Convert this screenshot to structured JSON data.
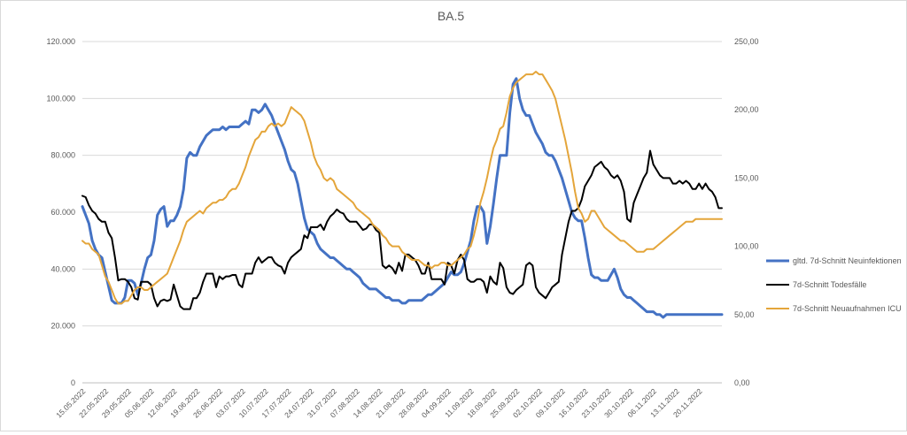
{
  "chart_data": {
    "type": "line",
    "title": "BA.5",
    "x_tick_labels": [
      "15.05.2022",
      "22.05.2022",
      "29.05.2022",
      "05.06.2022",
      "12.06.2022",
      "19.06.2022",
      "26.06.2022",
      "03.07.2022",
      "10.07.2022",
      "17.07.2022",
      "24.07.2022",
      "31.07.2022",
      "07.08.2022",
      "14.08.2022",
      "21.08.2022",
      "28.08.2022",
      "04.09.2022",
      "11.09.2022",
      "18.09.2022",
      "25.09.2022",
      "02.10.2022",
      "09.10.2022",
      "16.10.2022",
      "23.10.2022",
      "30.10.2022",
      "06.11.2022",
      "13.11.2022",
      "20.11.2022"
    ],
    "y_left": {
      "range": [
        0,
        120000
      ],
      "tick_labels": [
        "0",
        "20.000",
        "40.000",
        "60.000",
        "80.000",
        "100.000",
        "120.000"
      ]
    },
    "y_right": {
      "range": [
        0,
        250
      ],
      "tick_labels": [
        "0,00",
        "50,00",
        "100,00",
        "150,00",
        "200,00",
        "250,00"
      ]
    },
    "grid": "horizontal",
    "legend_position": "right",
    "series": [
      {
        "name": "gltd. 7d-Schnitt Neuinfektionen",
        "axis": "left",
        "color": "#4472c4",
        "x": [
          0,
          1,
          2,
          3,
          4,
          5,
          6,
          7,
          8,
          9,
          10,
          11,
          12,
          13,
          14,
          15,
          16,
          17,
          18,
          19,
          20,
          21,
          22,
          23,
          24,
          25,
          26,
          27,
          28,
          29,
          30,
          31,
          32,
          33,
          34,
          35,
          36,
          37,
          38,
          39,
          40,
          41,
          42,
          43,
          44,
          45,
          46,
          47,
          48,
          49,
          50,
          51,
          52,
          53,
          54,
          55,
          56,
          57,
          58,
          59,
          60,
          61,
          62,
          63,
          64,
          65,
          66,
          67,
          68,
          69,
          70,
          71,
          72,
          73,
          74,
          75,
          76,
          77,
          78,
          79,
          80,
          81,
          82,
          83,
          84,
          85,
          86,
          87,
          88,
          89,
          90,
          91,
          92,
          93,
          94,
          95,
          96,
          97,
          98,
          99,
          100,
          101,
          102,
          103,
          104,
          105,
          106,
          107,
          108,
          109,
          110,
          111,
          112,
          113,
          114,
          115,
          116,
          117,
          118,
          119,
          120,
          121,
          122,
          123,
          124,
          125,
          126,
          127,
          128,
          129,
          130,
          131,
          132,
          133,
          134,
          135,
          136,
          137,
          138,
          139,
          140,
          141,
          142,
          143,
          144,
          145,
          146,
          147,
          148,
          149,
          150,
          151,
          152,
          153,
          154,
          155,
          156,
          157,
          158,
          159,
          160,
          161,
          162,
          163,
          164,
          165,
          166,
          167,
          168,
          169,
          170,
          171,
          172,
          173,
          174,
          175,
          176,
          177,
          178,
          179,
          180,
          181,
          182,
          183,
          184,
          185,
          186,
          187,
          188,
          189,
          190,
          191,
          192,
          193,
          194,
          195,
          196
        ],
        "y": [
          62000,
          59000,
          56000,
          50000,
          47000,
          45000,
          44000,
          39000,
          34000,
          29000,
          28000,
          28000,
          28000,
          30000,
          36000,
          36000,
          35000,
          31000,
          35000,
          40000,
          44000,
          45000,
          50000,
          59000,
          61000,
          62000,
          55000,
          57000,
          57000,
          59000,
          62000,
          68000,
          79000,
          81000,
          80000,
          80000,
          83000,
          85000,
          87000,
          88000,
          89000,
          89000,
          89000,
          90000,
          89000,
          90000,
          90000,
          90000,
          90000,
          91000,
          92000,
          91000,
          96000,
          96000,
          95000,
          96000,
          98000,
          96000,
          94000,
          91000,
          88000,
          85000,
          82000,
          78000,
          75000,
          74000,
          70000,
          64000,
          58000,
          54000,
          53000,
          52000,
          49000,
          47000,
          46000,
          45000,
          44000,
          44000,
          43000,
          42000,
          41000,
          40000,
          40000,
          39000,
          38000,
          37000,
          35000,
          34000,
          33000,
          33000,
          33000,
          32000,
          31000,
          30000,
          30000,
          29000,
          29000,
          29000,
          28000,
          28000,
          29000,
          29000,
          29000,
          29000,
          29000,
          30000,
          31000,
          31000,
          32000,
          33000,
          34000,
          35000,
          37000,
          39000,
          38000,
          38000,
          39000,
          42000,
          46000,
          50000,
          57000,
          62000,
          62000,
          60000,
          49000,
          55000,
          63000,
          72000,
          80000,
          80000,
          80000,
          95000,
          105000,
          107000,
          100000,
          96000,
          94000,
          94000,
          91000,
          88000,
          86000,
          84000,
          81000,
          80000,
          80000,
          78000,
          75000,
          72000,
          68000,
          64000,
          60000,
          58000,
          57000,
          57000,
          51000,
          44000,
          38000,
          37000,
          37000,
          36000,
          36000,
          36000,
          38000,
          40000,
          37000,
          33000,
          31000,
          30000,
          30000,
          29000,
          28000,
          27000,
          26000,
          25000,
          25000,
          25000,
          24000,
          24000,
          23000,
          24000,
          24000,
          24000,
          24000,
          24000,
          24000,
          24000,
          24000,
          24000,
          24000,
          24000,
          24000,
          24000,
          24000,
          24000,
          24000,
          24000,
          24000
        ],
        "width": 3
      },
      {
        "name": "7d-Schnitt Todesfälle",
        "axis": "right",
        "color": "#000000",
        "x": [
          0,
          1,
          2,
          3,
          4,
          5,
          6,
          7,
          8,
          9,
          10,
          11,
          12,
          13,
          14,
          15,
          16,
          17,
          18,
          19,
          20,
          21,
          22,
          23,
          24,
          25,
          26,
          27,
          28,
          29,
          30,
          31,
          32,
          33,
          34,
          35,
          36,
          37,
          38,
          39,
          40,
          41,
          42,
          43,
          44,
          45,
          46,
          47,
          48,
          49,
          50,
          51,
          52,
          53,
          54,
          55,
          56,
          57,
          58,
          59,
          60,
          61,
          62,
          63,
          64,
          65,
          66,
          67,
          68,
          69,
          70,
          71,
          72,
          73,
          74,
          75,
          76,
          77,
          78,
          79,
          80,
          81,
          82,
          83,
          84,
          85,
          86,
          87,
          88,
          89,
          90,
          91,
          92,
          93,
          94,
          95,
          96,
          97,
          98,
          99,
          100,
          101,
          102,
          103,
          104,
          105,
          106,
          107,
          108,
          109,
          110,
          111,
          112,
          113,
          114,
          115,
          116,
          117,
          118,
          119,
          120,
          121,
          122,
          123,
          124,
          125,
          126,
          127,
          128,
          129,
          130,
          131,
          132,
          133,
          134,
          135,
          136,
          137,
          138,
          139,
          140,
          141,
          142,
          143,
          144,
          145,
          146,
          147,
          148,
          149,
          150,
          151,
          152,
          153,
          154,
          155,
          156,
          157,
          158,
          159,
          160,
          161,
          162,
          163,
          164,
          165,
          166,
          167,
          168,
          169,
          170,
          171,
          172,
          173,
          174,
          175,
          176,
          177,
          178,
          179,
          180,
          181,
          182,
          183,
          184,
          185,
          186,
          187,
          188,
          189,
          190,
          191,
          192,
          193,
          194,
          195,
          196
        ],
        "y": [
          137,
          136,
          130,
          126,
          124,
          120,
          118,
          118,
          110,
          106,
          92,
          75,
          76,
          76,
          74,
          70,
          62,
          61,
          74,
          74,
          74,
          72,
          62,
          56,
          60,
          61,
          60,
          61,
          72,
          64,
          56,
          54,
          54,
          54,
          62,
          62,
          66,
          74,
          80,
          80,
          80,
          70,
          78,
          76,
          78,
          78,
          79,
          79,
          72,
          70,
          80,
          80,
          80,
          88,
          92,
          88,
          90,
          92,
          92,
          88,
          86,
          85,
          80,
          88,
          92,
          94,
          96,
          98,
          108,
          106,
          114,
          114,
          114,
          116,
          112,
          118,
          122,
          124,
          127,
          125,
          124,
          120,
          118,
          118,
          118,
          115,
          112,
          113,
          116,
          116,
          112,
          110,
          86,
          84,
          86,
          84,
          80,
          88,
          82,
          94,
          94,
          92,
          90,
          86,
          80,
          80,
          88,
          76,
          76,
          76,
          76,
          72,
          88,
          86,
          80,
          90,
          94,
          90,
          76,
          74,
          74,
          76,
          76,
          74,
          66,
          78,
          74,
          72,
          88,
          84,
          70,
          66,
          65,
          68,
          70,
          72,
          86,
          88,
          86,
          70,
          66,
          64,
          62,
          66,
          70,
          72,
          74,
          94,
          106,
          118,
          126,
          126,
          128,
          134,
          144,
          148,
          152,
          158,
          160,
          162,
          158,
          156,
          152,
          150,
          152,
          148,
          140,
          120,
          118,
          132,
          138,
          144,
          150,
          154,
          170,
          160,
          156,
          152,
          150,
          150,
          150,
          146,
          146,
          148,
          146,
          148,
          146,
          142,
          142,
          146,
          142,
          146,
          142,
          140,
          136,
          128,
          128
        ],
        "width": 2
      },
      {
        "name": "7d-Schnitt Neuaufnahmen ICU",
        "axis": "right",
        "color": "#e4a53a",
        "x": [
          0,
          1,
          2,
          3,
          4,
          5,
          6,
          7,
          8,
          9,
          10,
          11,
          12,
          13,
          14,
          15,
          16,
          17,
          18,
          19,
          20,
          21,
          22,
          23,
          24,
          25,
          26,
          27,
          28,
          29,
          30,
          31,
          32,
          33,
          34,
          35,
          36,
          37,
          38,
          39,
          40,
          41,
          42,
          43,
          44,
          45,
          46,
          47,
          48,
          49,
          50,
          51,
          52,
          53,
          54,
          55,
          56,
          57,
          58,
          59,
          60,
          61,
          62,
          63,
          64,
          65,
          66,
          67,
          68,
          69,
          70,
          71,
          72,
          73,
          74,
          75,
          76,
          77,
          78,
          79,
          80,
          81,
          82,
          83,
          84,
          85,
          86,
          87,
          88,
          89,
          90,
          91,
          92,
          93,
          94,
          95,
          96,
          97,
          98,
          99,
          100,
          101,
          102,
          103,
          104,
          105,
          106,
          107,
          108,
          109,
          110,
          111,
          112,
          113,
          114,
          115,
          116,
          117,
          118,
          119,
          120,
          121,
          122,
          123,
          124,
          125,
          126,
          127,
          128,
          129,
          130,
          131,
          132,
          133,
          134,
          135,
          136,
          137,
          138,
          139,
          140,
          141,
          142,
          143,
          144,
          145,
          146,
          147,
          148,
          149,
          150,
          151,
          152,
          153,
          154,
          155,
          156,
          157,
          158,
          159,
          160,
          161,
          162,
          163,
          164,
          165,
          166,
          167,
          168,
          169,
          170,
          171,
          172,
          173,
          174,
          175,
          176,
          177,
          178,
          179,
          180,
          181,
          182,
          183,
          184,
          185,
          186,
          187,
          188,
          189,
          190,
          191,
          192,
          193,
          194,
          195,
          196
        ],
        "y": [
          104,
          102,
          102,
          98,
          96,
          94,
          86,
          78,
          74,
          68,
          62,
          58,
          58,
          60,
          60,
          64,
          68,
          70,
          70,
          68,
          68,
          70,
          72,
          74,
          76,
          78,
          80,
          86,
          92,
          98,
          104,
          112,
          118,
          120,
          122,
          124,
          126,
          124,
          128,
          130,
          132,
          132,
          134,
          134,
          136,
          140,
          142,
          142,
          146,
          152,
          158,
          166,
          172,
          178,
          180,
          184,
          184,
          188,
          190,
          188,
          190,
          188,
          190,
          196,
          202,
          200,
          198,
          196,
          192,
          184,
          176,
          166,
          160,
          156,
          150,
          148,
          150,
          148,
          142,
          140,
          138,
          136,
          134,
          132,
          128,
          126,
          124,
          122,
          120,
          116,
          114,
          112,
          108,
          106,
          102,
          100,
          100,
          100,
          96,
          94,
          92,
          90,
          90,
          90,
          88,
          86,
          86,
          84,
          86,
          86,
          88,
          88,
          86,
          86,
          88,
          90,
          92,
          94,
          98,
          100,
          108,
          118,
          132,
          140,
          150,
          162,
          172,
          178,
          186,
          188,
          198,
          210,
          216,
          220,
          222,
          224,
          226,
          226,
          226,
          228,
          226,
          226,
          222,
          218,
          214,
          208,
          198,
          188,
          178,
          166,
          154,
          140,
          128,
          124,
          118,
          120,
          126,
          126,
          122,
          118,
          114,
          112,
          110,
          108,
          106,
          104,
          104,
          102,
          100,
          98,
          96,
          96,
          96,
          98,
          98,
          98,
          100,
          102,
          104,
          106,
          108,
          110,
          112,
          114,
          116,
          118,
          118,
          118,
          120,
          120,
          120,
          120,
          120,
          120,
          120,
          120,
          120
        ],
        "width": 2
      }
    ]
  }
}
